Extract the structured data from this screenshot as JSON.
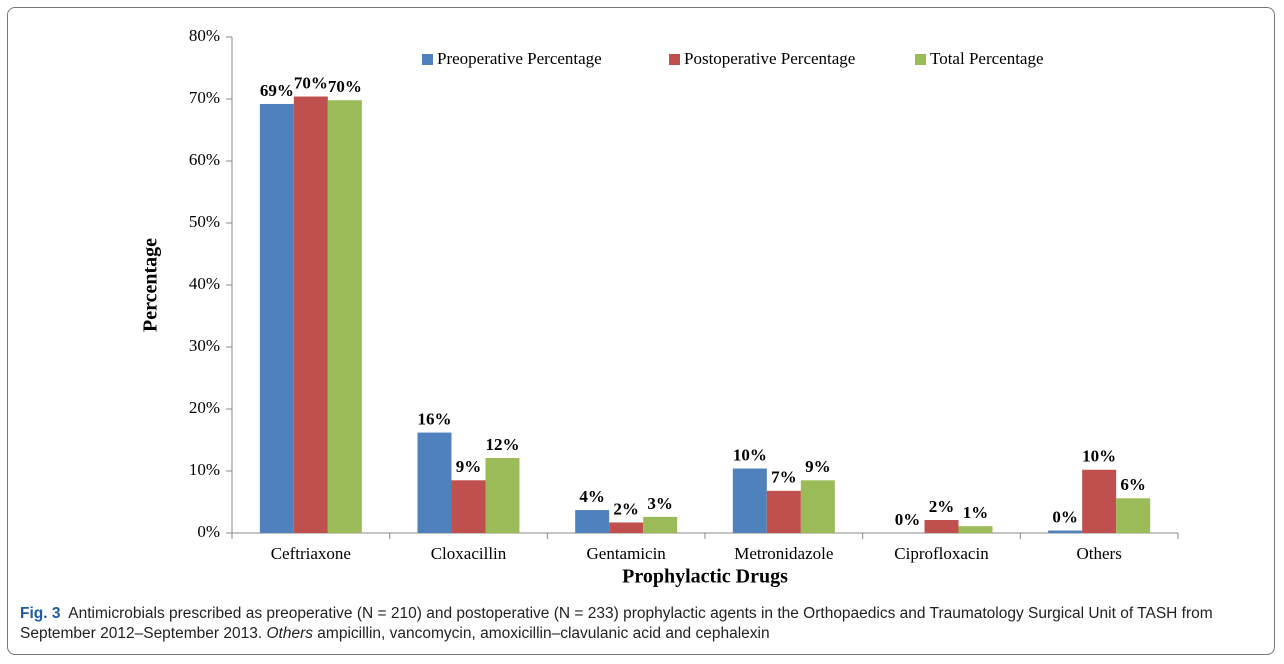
{
  "chart_data": {
    "type": "bar",
    "categories": [
      "Ceftriaxone",
      "Cloxacillin",
      "Gentamicin",
      "Metronidazole",
      "Ciprofloxacin",
      "Others"
    ],
    "series": [
      {
        "name": "Preoperative Percentage",
        "color": "#4f81bd",
        "values": [
          69.2,
          16.2,
          3.7,
          10.4,
          0,
          0.4
        ],
        "value_labels": [
          "69%",
          "16%",
          "4%",
          "10%",
          "0%",
          "0%"
        ]
      },
      {
        "name": "Postoperative Percentage",
        "color": "#c0504d",
        "values": [
          70.4,
          8.5,
          1.7,
          6.8,
          2.1,
          10.2
        ],
        "value_labels": [
          "70%",
          "9%",
          "2%",
          "7%",
          "2%",
          "10%"
        ]
      },
      {
        "name": "Total Percentage",
        "color": "#9bbb59",
        "values": [
          69.8,
          12.1,
          2.6,
          8.5,
          1.1,
          5.6
        ],
        "value_labels": [
          "70%",
          "12%",
          "3%",
          "9%",
          "1%",
          "6%"
        ]
      }
    ],
    "ylim": [
      0,
      80
    ],
    "yticks": [
      {
        "value": 0,
        "label": "0%"
      },
      {
        "value": 10,
        "label": "10%"
      },
      {
        "value": 20,
        "label": "20%"
      },
      {
        "value": 30,
        "label": "30%"
      },
      {
        "value": 40,
        "label": "40%"
      },
      {
        "value": 50,
        "label": "50%"
      },
      {
        "value": 60,
        "label": "60%"
      },
      {
        "value": 70,
        "label": "70%"
      },
      {
        "value": 80,
        "label": "80%"
      }
    ],
    "y_label": "Percentage",
    "x_label": "Prophylactic Drugs",
    "legend": "top",
    "caption": {
      "label": "Fig. 3",
      "text": "Antimicrobials prescribed as preoperative (N = 210) and postoperative (N = 233) prophylactic agents in the Orthopaedics and Traumatology Surgical Unit of TASH from September 2012–September 2013.",
      "emphasis": "Others",
      "text_end": "ampicillin, vancomycin, amoxicillin–clavulanic acid and cephalexin"
    }
  }
}
